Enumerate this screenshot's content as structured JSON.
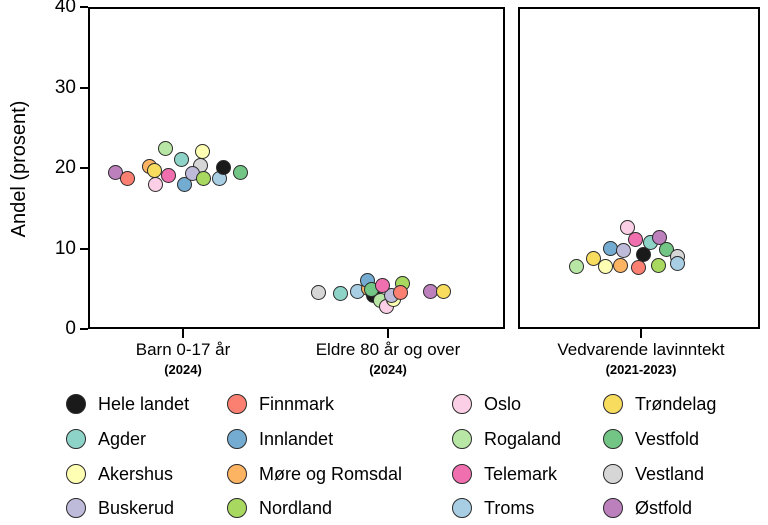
{
  "chart_data": {
    "type": "scatter",
    "title": "",
    "ylabel": "Andel (prosent)",
    "ylim": [
      0,
      40
    ],
    "y_ticks": [
      0,
      10,
      20,
      30,
      40
    ],
    "grid": false,
    "legend_position": "bottom",
    "regions": [
      {
        "name": "Hele landet",
        "color": "#1a1a1a"
      },
      {
        "name": "Agder",
        "color": "#8dd3c7"
      },
      {
        "name": "Akershus",
        "color": "#ffffb3"
      },
      {
        "name": "Buskerud",
        "color": "#bebada"
      },
      {
        "name": "Finnmark",
        "color": "#fb8072"
      },
      {
        "name": "Innlandet",
        "color": "#74abd0"
      },
      {
        "name": "Møre og Romsdal",
        "color": "#fdb462"
      },
      {
        "name": "Nordland",
        "color": "#a8d860"
      },
      {
        "name": "Oslo",
        "color": "#fbcfe5"
      },
      {
        "name": "Rogaland",
        "color": "#b8e6a5"
      },
      {
        "name": "Telemark",
        "color": "#f06fae"
      },
      {
        "name": "Troms",
        "color": "#a8cee4"
      },
      {
        "name": "Trøndelag",
        "color": "#f8dc5e"
      },
      {
        "name": "Vestfold",
        "color": "#72c585"
      },
      {
        "name": "Vestland",
        "color": "#d6d6d6"
      },
      {
        "name": "Østfold",
        "color": "#bc80bd"
      }
    ],
    "panels": [
      {
        "groups": [
          {
            "label": "Barn 0-17 år",
            "sublabel": "(2024)",
            "points": [
              {
                "region": "Østfold",
                "value": 19.5,
                "dx": -68
              },
              {
                "region": "Finnmark",
                "value": 18.7,
                "dx": -56
              },
              {
                "region": "Møre og Romsdal",
                "value": 20.2,
                "dx": -34
              },
              {
                "region": "Trøndelag",
                "value": 19.7,
                "dx": -29
              },
              {
                "region": "Oslo",
                "value": 18.0,
                "dx": -28
              },
              {
                "region": "Telemark",
                "value": 19.1,
                "dx": -15
              },
              {
                "region": "Rogaland",
                "value": 22.4,
                "dx": -18
              },
              {
                "region": "Agder",
                "value": 21.0,
                "dx": -2
              },
              {
                "region": "Innlandet",
                "value": 17.9,
                "dx": 1
              },
              {
                "region": "Akershus",
                "value": 22.1,
                "dx": 19
              },
              {
                "region": "Vestland",
                "value": 20.3,
                "dx": 17
              },
              {
                "region": "Buskerud",
                "value": 19.3,
                "dx": 9
              },
              {
                "region": "Nordland",
                "value": 18.7,
                "dx": 20
              },
              {
                "region": "Troms",
                "value": 18.7,
                "dx": 36
              },
              {
                "region": "Hele landet",
                "value": 20.1,
                "dx": 40
              },
              {
                "region": "Vestfold",
                "value": 19.5,
                "dx": 57
              }
            ]
          },
          {
            "label": "Eldre 80 år og over",
            "sublabel": "(2024)",
            "points": [
              {
                "region": "Vestland",
                "value": 4.5,
                "dx": -70
              },
              {
                "region": "Agder",
                "value": 4.4,
                "dx": -48
              },
              {
                "region": "Troms",
                "value": 4.7,
                "dx": -31
              },
              {
                "region": "Møre og Romsdal",
                "value": 5.0,
                "dx": -20
              },
              {
                "region": "Hele landet",
                "value": 4.1,
                "dx": -15
              },
              {
                "region": "Innlandet",
                "value": 6.0,
                "dx": -21
              },
              {
                "region": "Vestfold",
                "value": 4.9,
                "dx": -17
              },
              {
                "region": "Rogaland",
                "value": 3.5,
                "dx": -8
              },
              {
                "region": "Oslo",
                "value": 2.8,
                "dx": -2
              },
              {
                "region": "Akershus",
                "value": 3.7,
                "dx": 5
              },
              {
                "region": "Buskerud",
                "value": 4.2,
                "dx": 3
              },
              {
                "region": "Telemark",
                "value": 5.4,
                "dx": -6
              },
              {
                "region": "Nordland",
                "value": 5.6,
                "dx": 14
              },
              {
                "region": "Finnmark",
                "value": 4.5,
                "dx": 12
              },
              {
                "region": "Østfold",
                "value": 4.7,
                "dx": 42
              },
              {
                "region": "Trøndelag",
                "value": 4.6,
                "dx": 55
              }
            ]
          }
        ]
      },
      {
        "groups": [
          {
            "label": "Vedvarende lavinntekt",
            "sublabel": "(2021-2023)",
            "points": [
              {
                "region": "Rogaland",
                "value": 7.8,
                "dx": -65
              },
              {
                "region": "Trøndelag",
                "value": 8.7,
                "dx": -48
              },
              {
                "region": "Akershus",
                "value": 7.8,
                "dx": -36
              },
              {
                "region": "Innlandet",
                "value": 10.0,
                "dx": -31
              },
              {
                "region": "Møre og Romsdal",
                "value": 7.9,
                "dx": -21
              },
              {
                "region": "Buskerud",
                "value": 9.8,
                "dx": -18
              },
              {
                "region": "Oslo",
                "value": 12.6,
                "dx": -14
              },
              {
                "region": "Telemark",
                "value": 11.1,
                "dx": -6
              },
              {
                "region": "Finnmark",
                "value": 7.6,
                "dx": -3
              },
              {
                "region": "Agder",
                "value": 10.8,
                "dx": 9
              },
              {
                "region": "Hele landet",
                "value": 9.3,
                "dx": 2
              },
              {
                "region": "Nordland",
                "value": 7.9,
                "dx": 17
              },
              {
                "region": "Østfold",
                "value": 11.4,
                "dx": 18
              },
              {
                "region": "Vestfold",
                "value": 9.9,
                "dx": 25
              },
              {
                "region": "Vestland",
                "value": 9.0,
                "dx": 36
              },
              {
                "region": "Troms",
                "value": 8.1,
                "dx": 36
              }
            ]
          }
        ]
      }
    ],
    "legend_order": [
      "Hele landet",
      "Agder",
      "Akershus",
      "Buskerud",
      "Finnmark",
      "Innlandet",
      "Møre og Romsdal",
      "Nordland",
      "Oslo",
      "Rogaland",
      "Telemark",
      "Troms",
      "Trøndelag",
      "Vestfold",
      "Vestland",
      "Østfold"
    ]
  }
}
